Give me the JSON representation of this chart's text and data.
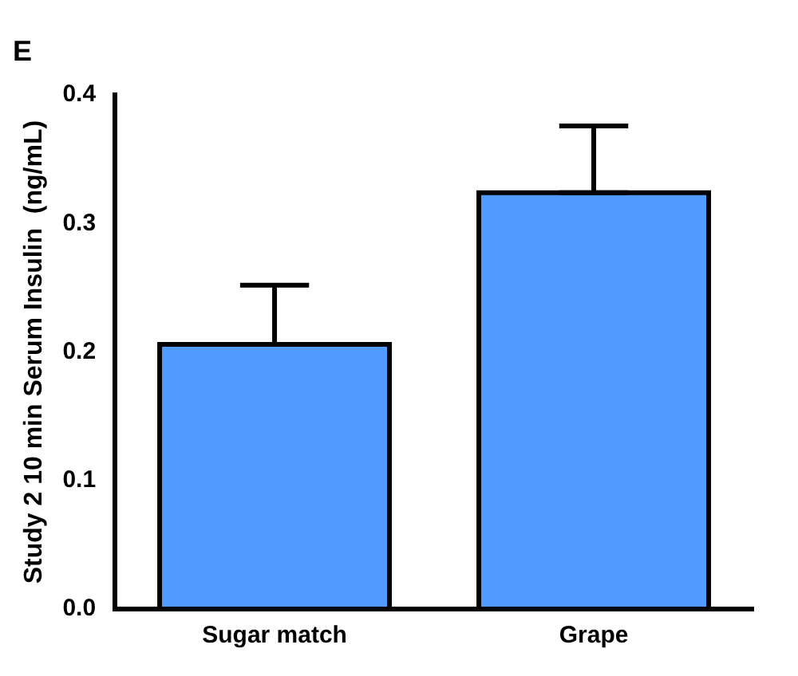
{
  "chart_data": {
    "type": "bar",
    "title": "E",
    "ylabel": "Study 2 10 min Serum Insulin  (ng/mL)",
    "categories": [
      "Sugar match",
      "Grape"
    ],
    "values": [
      0.206,
      0.324
    ],
    "errors": [
      [
        0.206,
        0.252
      ],
      [
        0.324,
        0.376
      ]
    ],
    "color": "#4f9bff",
    "ylim": [
      0,
      0.4
    ],
    "yticks": [
      {
        "value": 0,
        "label": "0.0"
      },
      {
        "value": 0.1,
        "label": "0.1"
      },
      {
        "value": 0.2,
        "label": "0.2"
      },
      {
        "value": 0.3,
        "label": "0.3"
      },
      {
        "value": 0.4,
        "label": "0.4"
      }
    ],
    "grid": false,
    "legend": false
  }
}
